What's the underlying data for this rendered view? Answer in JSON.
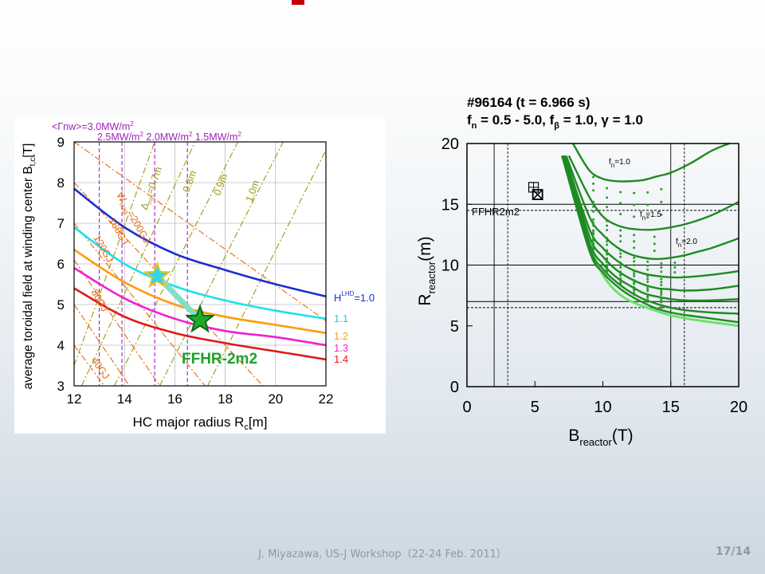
{
  "footer": {
    "citation": "J. Miyazawa, US-J Workshop（22-24 Feb. 2011）",
    "page": "17/14"
  },
  "colors": {
    "title_mark": "#c00000"
  },
  "chart_data": [
    {
      "type": "line",
      "xlabel": "HC major radius R",
      "xlabel_sub": "c",
      "xlabel_unit": "[m]",
      "ylabel": "average toroidal field at winding center B",
      "ylabel_sub": "t,c",
      "ylabel_unit": "[T]",
      "xlim": [
        12,
        22
      ],
      "ylim": [
        3,
        9
      ],
      "xticks": [
        "12",
        "14",
        "16",
        "18",
        "20",
        "22"
      ],
      "yticks": [
        "3",
        "4",
        "5",
        "6",
        "7",
        "8",
        "9"
      ],
      "header_line1": "<Γnw>=3.0MW/m",
      "header_line1_sup": "2",
      "header_line2": [
        "2.5MW/m",
        "2.0MW/m",
        "1.5MW/m"
      ],
      "header_line2_sup": "2",
      "series": [
        {
          "name": "=1.0",
          "color": "#1c2fd0",
          "x": [
            12,
            14,
            16,
            18,
            20,
            22
          ],
          "y": [
            7.85,
            6.9,
            6.25,
            5.85,
            5.5,
            5.2
          ]
        },
        {
          "name": "1.1",
          "color": "#1ee0ef",
          "x": [
            12,
            14,
            16,
            18,
            20,
            22
          ],
          "y": [
            6.9,
            6.0,
            5.45,
            5.1,
            4.85,
            4.65
          ]
        },
        {
          "name": "1.2",
          "color": "#ff9a0a",
          "x": [
            12,
            14,
            16,
            18,
            20,
            22
          ],
          "y": [
            6.35,
            5.55,
            5.0,
            4.7,
            4.5,
            4.3
          ]
        },
        {
          "name": "1.3",
          "color": "#f020d0",
          "x": [
            12,
            14,
            16,
            18,
            20,
            22
          ],
          "y": [
            5.9,
            5.15,
            4.65,
            4.35,
            4.2,
            4.0
          ]
        },
        {
          "name": "1.4",
          "color": "#e01818",
          "x": [
            12,
            14,
            16,
            18,
            20,
            22
          ],
          "y": [
            5.4,
            4.7,
            4.3,
            4.05,
            3.85,
            3.65
          ]
        }
      ],
      "legend_prefix": "H",
      "legend_prefix_sup": "LHD",
      "wmag_labels": [
        "200GJ",
        "160GJ",
        "120GJ",
        "80GJ",
        "40GJ"
      ],
      "wmag_label_prefix": "W",
      "wmag_label_prefix_sub": "mag",
      "wmag_label_prefix_tail": "=",
      "delta_labels": [
        "=0.7m",
        "0.8m",
        "0.9m",
        "1.0m"
      ],
      "delta_label_prefix": "Δ",
      "delta_label_prefix_sub": "min",
      "design_points": [
        {
          "x": 15.3,
          "y": 5.7,
          "color": "#2ad8f0"
        },
        {
          "x": 17.0,
          "y": 4.62,
          "color": "#1faa2a"
        }
      ],
      "annotation": "FFHR-2m2"
    },
    {
      "type": "scatter",
      "title_line1": "#96164 (t = 6.966 s)",
      "title_line2": "f",
      "title_line2_parts": [
        "n",
        " = 0.5 - 5.0, f",
        "β",
        " = 1.0, γ = 1.0"
      ],
      "xlabel": "B",
      "xlabel_sub": "reactor",
      "xlabel_unit": "(T)",
      "ylabel": "R",
      "ylabel_sub": "reactor",
      "ylabel_unit": "(m)",
      "xlim": [
        0,
        20
      ],
      "ylim": [
        0,
        20
      ],
      "xticks": [
        "0",
        "5",
        "10",
        "15",
        "20"
      ],
      "yticks": [
        "0",
        "5",
        "10",
        "15",
        "20"
      ],
      "series": [
        {
          "name": "=1.0",
          "x": [
            7.8,
            9,
            10,
            11,
            12,
            13,
            14,
            15,
            16.5,
            18,
            19.3
          ],
          "y": [
            20,
            17.8,
            17.1,
            16.9,
            16.9,
            17.0,
            17.3,
            17.6,
            18.4,
            19.4,
            20
          ]
        },
        {
          "name": "=1.5",
          "x": [
            7.5,
            9,
            10,
            11,
            12,
            13.5,
            15,
            16.5,
            18,
            20
          ],
          "y": [
            19,
            15.6,
            14.0,
            13.3,
            13.0,
            12.9,
            13.1,
            13.5,
            14.1,
            15.2
          ]
        },
        {
          "name": "=2.0",
          "x": [
            7.3,
            9,
            10,
            11,
            12,
            13,
            14,
            15,
            16,
            17,
            18,
            20
          ],
          "y": [
            19,
            14.0,
            12.5,
            11.5,
            10.9,
            10.6,
            10.5,
            10.6,
            10.8,
            11.1,
            11.4,
            12.2
          ]
        },
        {
          "name": "",
          "x": [
            7.2,
            9,
            10,
            11,
            12,
            13,
            14,
            15,
            16,
            18,
            20
          ],
          "y": [
            19,
            13.0,
            11.4,
            10.4,
            9.7,
            9.3,
            9.1,
            9.0,
            9.0,
            9.2,
            9.5
          ]
        },
        {
          "name": "",
          "x": [
            7.2,
            9,
            10,
            11,
            12,
            13,
            14,
            15,
            16,
            18,
            20
          ],
          "y": [
            19,
            12.4,
            10.7,
            9.6,
            8.9,
            8.4,
            8.1,
            8.0,
            7.9,
            8.0,
            8.3
          ]
        },
        {
          "name": "",
          "x": [
            7.1,
            9,
            10,
            11,
            12,
            13,
            14,
            15,
            16,
            18,
            20
          ],
          "y": [
            19,
            11.9,
            10.1,
            9.0,
            8.3,
            7.7,
            7.4,
            7.2,
            7.1,
            7.1,
            7.2
          ]
        },
        {
          "name": "",
          "x": [
            7.1,
            9,
            10,
            11,
            12,
            13,
            14,
            15,
            16,
            18,
            20
          ],
          "y": [
            19,
            11.5,
            9.7,
            8.6,
            7.8,
            7.2,
            6.8,
            6.5,
            6.3,
            6.1,
            6.0
          ]
        },
        {
          "name": "",
          "x": [
            7.0,
            9,
            10,
            11,
            12,
            13,
            14,
            15,
            16,
            18,
            20
          ],
          "y": [
            19,
            11.2,
            9.4,
            8.3,
            7.5,
            6.9,
            6.4,
            6.1,
            5.9,
            5.6,
            5.3
          ]
        }
      ],
      "series_label_prefix": "f",
      "series_label_prefix_sub": "n",
      "hlines": [
        15,
        14.5,
        10,
        7,
        6.5
      ],
      "vlines": [
        2,
        3,
        15,
        16
      ],
      "marker_label": "FFHR2m2",
      "markers": [
        {
          "x": 4.9,
          "y": 16.4
        },
        {
          "x": 5.2,
          "y": 15.8
        }
      ]
    }
  ]
}
